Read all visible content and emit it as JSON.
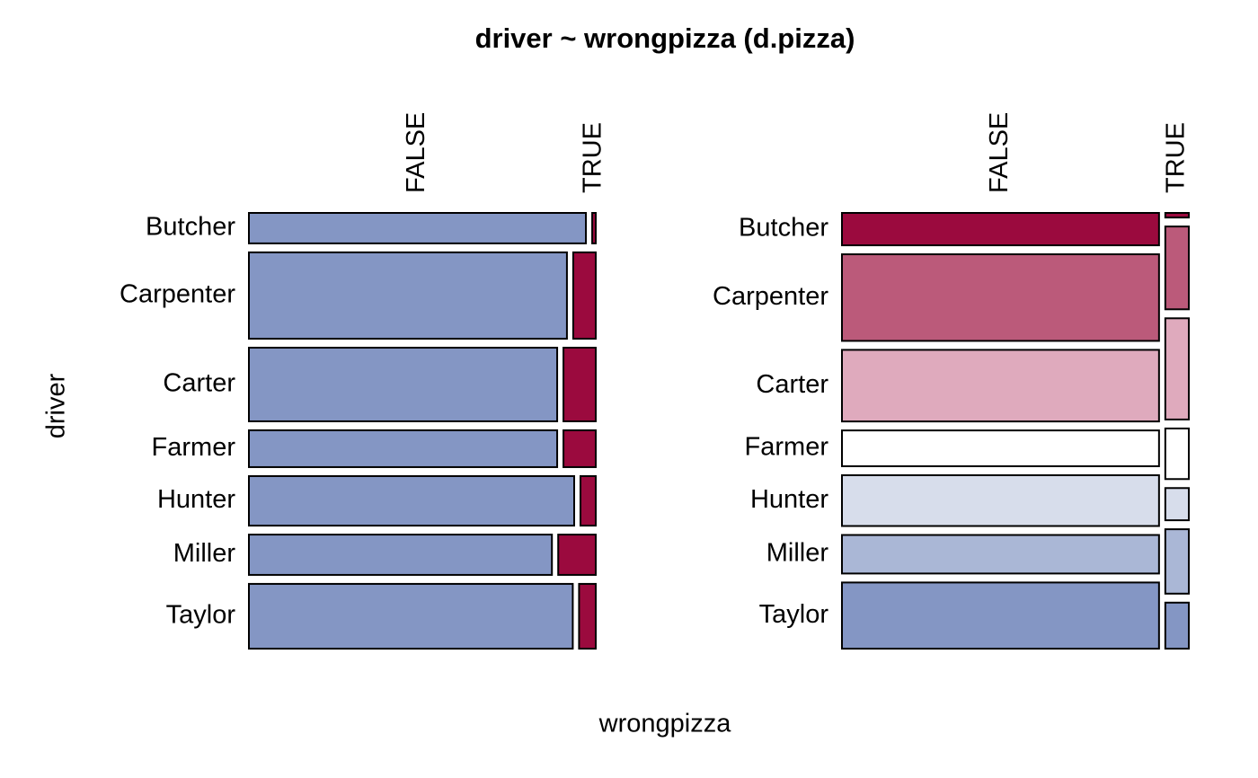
{
  "chart_data": {
    "type": "mosaic",
    "title": "driver ~ wrongpizza (d.pizza)",
    "x_label": "wrongpizza",
    "y_label": "driver",
    "categories": [
      "Butcher",
      "Carpenter",
      "Carter",
      "Farmer",
      "Hunter",
      "Miller",
      "Taylor"
    ],
    "series": [
      {
        "name": "FALSE",
        "color": "#8496c4",
        "values": [
          95,
          254,
          210,
          105,
          149,
          113,
          194
        ]
      },
      {
        "name": "TRUE",
        "color": "#9b0a3e",
        "values": [
          1,
          18,
          22,
          11,
          7,
          14,
          10
        ]
      }
    ],
    "shading_colors": [
      "#9b0a3e",
      "#bb5a7a",
      "#dfaabd",
      "#ffffff",
      "#d7ddeb",
      "#aab7d6",
      "#8496c4"
    ]
  }
}
